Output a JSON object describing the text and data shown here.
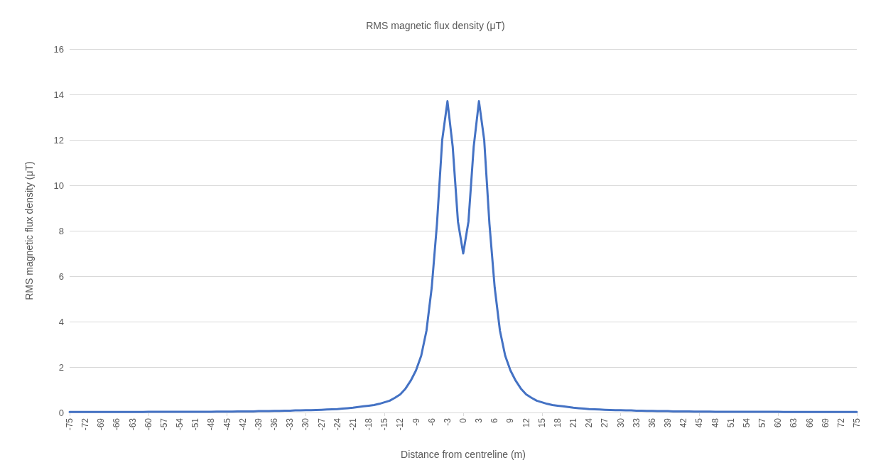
{
  "chart_data": {
    "type": "line",
    "title": "RMS magnetic flux density (μT)",
    "xlabel": "Distance from centreline (m)",
    "ylabel": "RMS magnetic flux density (μT)",
    "categories": [
      "-75",
      null,
      null,
      "-72",
      null,
      null,
      "-69",
      null,
      null,
      "-66",
      null,
      null,
      "-63",
      null,
      null,
      "-60",
      null,
      null,
      "-57",
      null,
      null,
      "-54",
      null,
      null,
      "-51",
      null,
      null,
      "-48",
      null,
      null,
      "-45",
      null,
      null,
      "-42",
      null,
      null,
      "-39",
      null,
      null,
      "-36",
      null,
      null,
      "-33",
      null,
      null,
      "-30",
      null,
      null,
      "-27",
      null,
      null,
      "-24",
      null,
      null,
      "-21",
      null,
      null,
      "-18",
      null,
      null,
      "-15",
      null,
      null,
      "-12",
      null,
      null,
      "-9",
      null,
      null,
      "-6",
      null,
      null,
      "-3",
      null,
      null,
      "0",
      null,
      null,
      "3",
      null,
      null,
      "6",
      null,
      null,
      "9",
      null,
      null,
      "12",
      null,
      null,
      "15",
      null,
      null,
      "18",
      null,
      null,
      "21",
      null,
      null,
      "24",
      null,
      null,
      "27",
      null,
      null,
      "30",
      null,
      null,
      "33",
      null,
      null,
      "36",
      null,
      null,
      "39",
      null,
      null,
      "42",
      null,
      null,
      "45",
      null,
      null,
      "48",
      null,
      null,
      "51",
      null,
      null,
      "54",
      null,
      null,
      "57",
      null,
      null,
      "60",
      null,
      null,
      "63",
      null,
      null,
      "66",
      null,
      null,
      "69",
      null,
      null,
      "72",
      null,
      null,
      "75"
    ],
    "series": [
      {
        "color": "#4472c4",
        "values": [
          0.02,
          0.02,
          0.02,
          0.02,
          0.02,
          0.02,
          0.02,
          0.02,
          0.02,
          0.02,
          0.02,
          0.02,
          0.02,
          0.02,
          0.02,
          0.03,
          0.03,
          0.03,
          0.03,
          0.03,
          0.03,
          0.03,
          0.03,
          0.03,
          0.03,
          0.03,
          0.03,
          0.03,
          0.04,
          0.04,
          0.04,
          0.04,
          0.05,
          0.05,
          0.05,
          0.05,
          0.06,
          0.06,
          0.06,
          0.07,
          0.07,
          0.08,
          0.08,
          0.09,
          0.09,
          0.1,
          0.1,
          0.11,
          0.12,
          0.13,
          0.14,
          0.15,
          0.17,
          0.19,
          0.21,
          0.24,
          0.27,
          0.3,
          0.33,
          0.38,
          0.45,
          0.52,
          0.65,
          0.8,
          1.05,
          1.4,
          1.85,
          2.5,
          3.6,
          5.5,
          8.3,
          12.0,
          13.7,
          11.7,
          8.4,
          7.0,
          8.4,
          11.7,
          13.7,
          12.0,
          8.3,
          5.5,
          3.6,
          2.5,
          1.85,
          1.4,
          1.05,
          0.8,
          0.65,
          0.52,
          0.45,
          0.38,
          0.33,
          0.3,
          0.27,
          0.24,
          0.21,
          0.19,
          0.17,
          0.15,
          0.14,
          0.13,
          0.12,
          0.11,
          0.1,
          0.1,
          0.09,
          0.09,
          0.08,
          0.08,
          0.07,
          0.07,
          0.06,
          0.06,
          0.06,
          0.05,
          0.05,
          0.05,
          0.05,
          0.04,
          0.04,
          0.04,
          0.04,
          0.03,
          0.03,
          0.03,
          0.03,
          0.03,
          0.03,
          0.03,
          0.03,
          0.03,
          0.03,
          0.03,
          0.03,
          0.03,
          0.02,
          0.02,
          0.02,
          0.02,
          0.02,
          0.02,
          0.02,
          0.02,
          0.02,
          0.02,
          0.02,
          0.02,
          0.02,
          0.02,
          0.02
        ]
      }
    ],
    "ylim": [
      0,
      16
    ],
    "yticks": [
      0,
      2,
      4,
      6,
      8,
      10,
      12,
      14,
      16
    ],
    "grid": "y",
    "marker": "none",
    "line_style": "solid"
  }
}
